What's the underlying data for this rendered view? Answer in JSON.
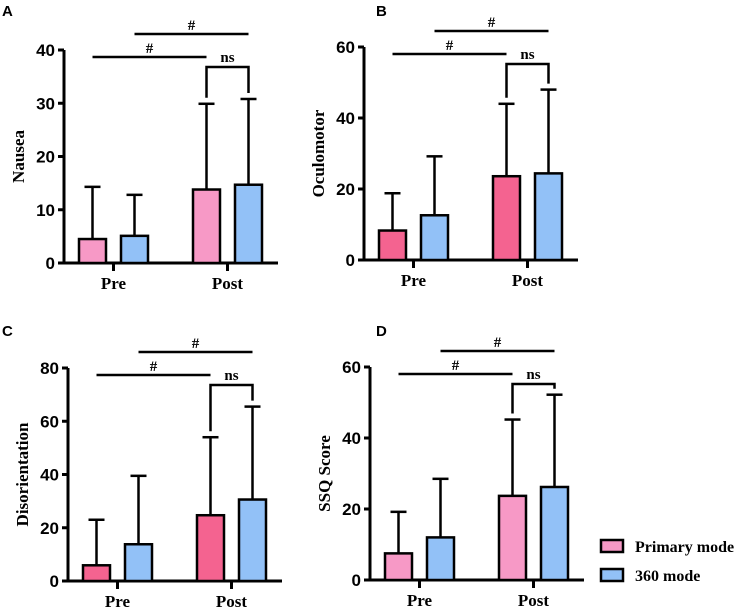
{
  "colors": {
    "pink_light": "#F799C6",
    "pink_dark": "#F46390",
    "blue": "#92C1F7",
    "line": "#000000"
  },
  "legend": [
    {
      "label": "Primary mode",
      "color": "#F799C6"
    },
    {
      "label": "360 mode",
      "color": "#92C1F7"
    }
  ],
  "chart_data": [
    {
      "type": "bar",
      "panel": "A",
      "ylabel": "Nausea",
      "ylim": [
        0,
        40
      ],
      "yticks": [
        0,
        10,
        20,
        30,
        40
      ],
      "categories": [
        "Pre",
        "Post"
      ],
      "primary_color": "#F799C6",
      "series": [
        {
          "name": "Primary mode",
          "values": [
            4.5,
            13.8
          ],
          "sd": [
            9.8,
            16.1
          ]
        },
        {
          "name": "360 mode",
          "values": [
            5.1,
            14.7
          ],
          "sd": [
            7.7,
            16.1
          ]
        }
      ],
      "annotations": [
        "#",
        "#",
        "ns"
      ]
    },
    {
      "type": "bar",
      "panel": "B",
      "ylabel": "Oculomotor",
      "ylim": [
        0,
        60
      ],
      "yticks": [
        0,
        20,
        40,
        60
      ],
      "categories": [
        "Pre",
        "Post"
      ],
      "primary_color": "#F46390",
      "series": [
        {
          "name": "Primary mode",
          "values": [
            8.3,
            23.6
          ],
          "sd": [
            10.5,
            20.4
          ]
        },
        {
          "name": "360 mode",
          "values": [
            12.6,
            24.4
          ],
          "sd": [
            16.6,
            23.6
          ]
        }
      ],
      "annotations": [
        "#",
        "#",
        "ns"
      ]
    },
    {
      "type": "bar",
      "panel": "C",
      "ylabel": "Disorientation",
      "ylim": [
        0,
        80
      ],
      "yticks": [
        0,
        20,
        40,
        60,
        80
      ],
      "categories": [
        "Pre",
        "Post"
      ],
      "primary_color": "#F46390",
      "series": [
        {
          "name": "Primary mode",
          "values": [
            5.9,
            24.7
          ],
          "sd": [
            17.1,
            29.3
          ]
        },
        {
          "name": "360 mode",
          "values": [
            13.8,
            30.6
          ],
          "sd": [
            25.7,
            34.9
          ]
        }
      ],
      "annotations": [
        "#",
        "#",
        "ns"
      ]
    },
    {
      "type": "bar",
      "panel": "D",
      "ylabel": "SSQ Score",
      "ylim": [
        0,
        60
      ],
      "yticks": [
        0,
        20,
        40,
        60
      ],
      "categories": [
        "Pre",
        "Post"
      ],
      "primary_color": "#F799C6",
      "series": [
        {
          "name": "Primary mode",
          "values": [
            7.5,
            23.7
          ],
          "sd": [
            11.7,
            21.5
          ]
        },
        {
          "name": "360 mode",
          "values": [
            12.0,
            26.2
          ],
          "sd": [
            16.5,
            26.0
          ]
        }
      ],
      "annotations": [
        "#",
        "#",
        "ns"
      ]
    }
  ]
}
